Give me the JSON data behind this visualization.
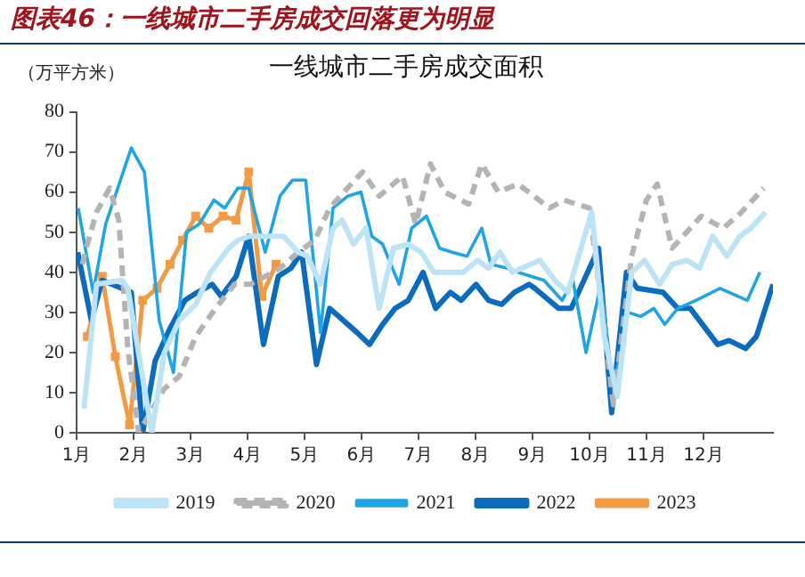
{
  "chart_data": {
    "type": "line",
    "title": "一线城市二手房成交面积",
    "subtitle": "图表46：一线城市二手房成交回落更为明显",
    "ylabel": "（万平方米）",
    "xlim": [
      1,
      13.22
    ],
    "xticks": [
      {
        "value": 1,
        "label": "1月"
      },
      {
        "value": 2,
        "label": "2月"
      },
      {
        "value": 3,
        "label": "3月"
      },
      {
        "value": 4,
        "label": "4月"
      },
      {
        "value": 5,
        "label": "5月"
      },
      {
        "value": 6,
        "label": "6月"
      },
      {
        "value": 7,
        "label": "7月"
      },
      {
        "value": 8,
        "label": "8月"
      },
      {
        "value": 9,
        "label": "9月"
      },
      {
        "value": 10,
        "label": "10月"
      },
      {
        "value": 11,
        "label": "11月"
      },
      {
        "value": 12,
        "label": "12月"
      }
    ],
    "ylim": [
      0,
      80
    ],
    "yticks": [
      0,
      10,
      20,
      30,
      40,
      50,
      60,
      70,
      80
    ],
    "grid": false,
    "legend": "bottom",
    "marker": "none",
    "series": [
      {
        "name": "2019",
        "color": "#bde3f7",
        "line_style": "solid",
        "x": [
          1.13,
          1.35,
          1.8,
          1.9,
          2.32,
          2.54,
          2.8,
          3.09,
          3.35,
          3.67,
          3.83,
          4.05,
          4.31,
          4.63,
          4.89,
          5.05,
          5.28,
          5.5,
          5.66,
          5.86,
          6.08,
          6.31,
          6.56,
          6.82,
          7.05,
          7.27,
          7.53,
          7.78,
          8.04,
          8.23,
          8.43,
          8.65,
          8.97,
          9.13,
          9.39,
          9.62,
          10.04,
          10.26,
          10.49,
          10.74,
          10.97,
          11.23,
          11.45,
          11.71,
          11.93,
          12.16,
          12.41,
          12.64,
          12.83,
          13.09
        ],
        "values": [
          6,
          37,
          38,
          36,
          0,
          20,
          28,
          32,
          40,
          46,
          48,
          49,
          49,
          49,
          45,
          44,
          37,
          51,
          53,
          47,
          51,
          31,
          46,
          47,
          45,
          40,
          40,
          40,
          43,
          41,
          45,
          40,
          42,
          43,
          38,
          35,
          55,
          24,
          9,
          40,
          43,
          37,
          42,
          43,
          41,
          49,
          44,
          49,
          51,
          55
        ]
      },
      {
        "name": "2020",
        "color": "#b4b4b4",
        "line_style": "dashed",
        "x": [
          1.1,
          1.19,
          1.35,
          1.58,
          1.74,
          1.9,
          2.09,
          2.54,
          2.8,
          3.09,
          3.44,
          3.77,
          4.05,
          4.57,
          4.89,
          5.18,
          5.44,
          5.69,
          6.02,
          6.31,
          6.72,
          6.95,
          7.21,
          7.46,
          7.88,
          8.11,
          8.4,
          8.75,
          9.3,
          9.55,
          10.0,
          10.42,
          10.74,
          11.0,
          11.19,
          11.45,
          11.96,
          12.35,
          12.67,
          13.06
        ],
        "values": [
          42,
          47,
          55,
          61,
          53,
          21,
          0,
          11,
          14,
          24,
          31,
          37,
          37,
          41,
          45,
          48,
          56,
          60,
          65,
          59,
          64,
          52,
          67,
          60,
          57,
          67,
          60,
          62,
          56,
          58,
          56,
          7,
          44,
          58,
          62,
          46,
          54,
          51,
          55,
          61
        ]
      },
      {
        "name": "2021",
        "color": "#1fa5e6",
        "line_style": "solid",
        "x": [
          1.03,
          1.29,
          1.51,
          1.96,
          2.19,
          2.45,
          2.7,
          2.93,
          3.15,
          3.41,
          3.6,
          3.83,
          4.02,
          4.31,
          4.57,
          4.79,
          5.02,
          5.28,
          5.5,
          5.76,
          5.99,
          6.18,
          6.37,
          6.66,
          6.88,
          7.14,
          7.37,
          7.59,
          7.85,
          8.11,
          8.27,
          8.56,
          8.75,
          8.97,
          9.2,
          9.52,
          9.71,
          9.94,
          10.2,
          10.42,
          10.68,
          10.9,
          11.13,
          11.32,
          11.55,
          11.87,
          12.29,
          12.77,
          12.99
        ],
        "values": [
          56,
          35,
          52,
          71,
          65,
          28,
          15,
          50,
          52,
          58,
          56,
          61,
          61,
          45,
          59,
          63,
          63,
          25,
          56,
          59,
          60,
          49,
          47,
          37,
          51,
          54,
          46,
          45,
          44,
          51,
          42,
          41,
          40,
          39,
          38,
          33,
          38,
          20,
          37,
          11,
          30,
          29,
          31,
          27,
          31,
          33,
          36,
          33,
          40
        ]
      },
      {
        "name": "2022",
        "color": "#0b6bbd",
        "line_style": "solid",
        "x": [
          1.02,
          1.26,
          1.45,
          1.96,
          2.16,
          2.38,
          2.64,
          2.9,
          3.12,
          3.38,
          3.54,
          3.8,
          4.02,
          4.28,
          4.54,
          4.76,
          4.95,
          5.21,
          5.44,
          5.92,
          6.14,
          6.37,
          6.59,
          6.82,
          7.08,
          7.3,
          7.56,
          7.75,
          8.01,
          8.23,
          8.46,
          8.68,
          8.94,
          9.04,
          9.46,
          9.68,
          10.16,
          10.39,
          10.65,
          10.84,
          11.29,
          11.55,
          11.77,
          12.25,
          12.45,
          12.74,
          12.93,
          13.22
        ],
        "values": [
          45,
          28,
          38,
          35,
          0,
          18,
          26,
          33,
          35,
          37,
          34,
          39,
          49,
          22,
          39,
          41,
          45,
          17,
          31,
          25,
          22,
          27,
          31,
          33,
          40,
          31,
          35,
          33,
          37,
          33,
          32,
          35,
          37,
          36,
          31,
          31,
          46,
          5,
          40,
          36,
          35,
          31,
          31,
          22,
          23,
          21,
          24,
          37
        ]
      },
      {
        "name": "2023",
        "color": "#f39a45",
        "line_style": "solid",
        "marker": "square",
        "x": [
          1.19,
          1.45,
          1.68,
          1.93,
          2.16,
          2.41,
          2.64,
          2.86,
          3.09,
          3.32,
          3.57,
          3.8,
          4.02,
          4.25,
          4.5
        ],
        "values": [
          24,
          39,
          19,
          2,
          33,
          36,
          42,
          48,
          54,
          51,
          54,
          53,
          65,
          34,
          42
        ]
      }
    ]
  }
}
